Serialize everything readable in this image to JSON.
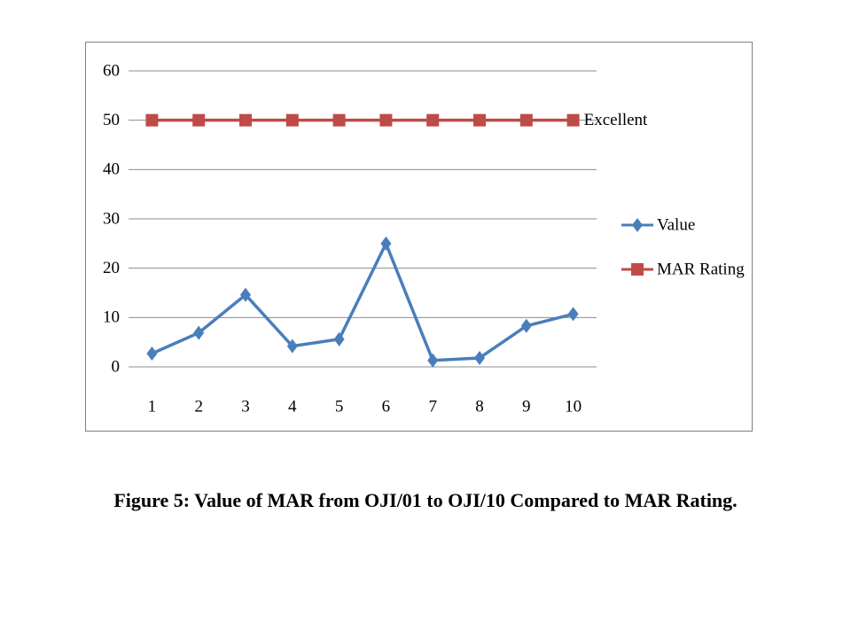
{
  "chart_data": {
    "type": "line",
    "x": [
      1,
      2,
      3,
      4,
      5,
      6,
      7,
      8,
      9,
      10
    ],
    "x_tick_labels": [
      "1",
      "2",
      "3",
      "4",
      "5",
      "6",
      "7",
      "8",
      "9",
      "10"
    ],
    "y_tick_labels": [
      "0",
      "10",
      "20",
      "30",
      "40",
      "50",
      "60"
    ],
    "ylim": [
      0,
      60
    ],
    "grid": "horizontal",
    "legend_position": "right",
    "series": [
      {
        "name": "Value",
        "values": [
          2.7,
          6.9,
          14.6,
          4.2,
          5.6,
          25.0,
          1.3,
          1.8,
          8.3,
          10.7
        ],
        "color": "#4a7ebb",
        "marker": "diamond"
      },
      {
        "name": "MAR Rating",
        "values": [
          50,
          50,
          50,
          50,
          50,
          50,
          50,
          50,
          50,
          50
        ],
        "color": "#be4b48",
        "marker": "square",
        "end_label": "Excellent"
      }
    ]
  },
  "caption": "Figure 5: Value of MAR from OJI/01 to OJI/10 Compared to MAR Rating."
}
